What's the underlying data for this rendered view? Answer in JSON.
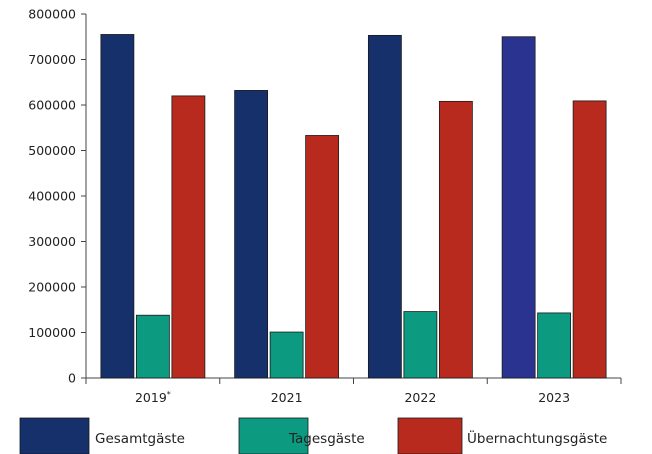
{
  "chart_data": {
    "type": "bar",
    "categories": [
      "2019",
      "2021",
      "2022",
      "2023"
    ],
    "category_footnote": "*",
    "footnote_category_index": 0,
    "y_ticks": [
      "0",
      "100000",
      "200000",
      "300000",
      "400000",
      "500000",
      "600000",
      "700000",
      "800000"
    ],
    "ylim": [
      0,
      800000
    ],
    "grid": false,
    "legend_position": "bottom",
    "series": [
      {
        "name": "Gesamtgäste",
        "color": "#15306b",
        "values": [
          755000,
          632000,
          753000,
          750000
        ]
      },
      {
        "name": "Tagesgäste",
        "color": "#0c9a80",
        "values": [
          138000,
          101000,
          146000,
          143000
        ]
      },
      {
        "name": "Übernachtungsgäste",
        "color": "#b92a1e",
        "values": [
          620000,
          533000,
          608000,
          609000
        ]
      }
    ],
    "bar_color_overrides": [
      {
        "series": 0,
        "category": 3,
        "color": "#2b3390"
      }
    ]
  }
}
